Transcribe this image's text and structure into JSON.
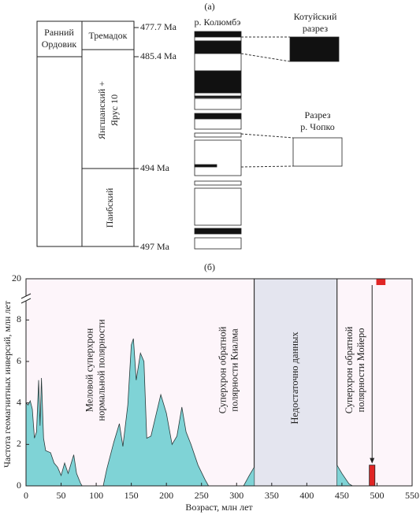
{
  "panel_a": {
    "label": "(а)",
    "era": [
      "Ранний",
      "Ордовик"
    ],
    "stage_top": "Тремадок",
    "stage_mid": [
      "Янгшанский +",
      "Ярус 10"
    ],
    "stage_low": "Паибский",
    "ages": [
      "477.7 Ма",
      "485.4 Ма",
      "494 Ма",
      "497 Ма"
    ],
    "section_main": "р. Колюмбэ",
    "section_kotuy": [
      "Котуйский",
      "разрез"
    ],
    "section_chopko": [
      "Разрез",
      "р. Чопко"
    ]
  },
  "chart_data": {
    "type": "area",
    "label": "(б)",
    "x_label": "Возраст, млн лет",
    "y_label": "Частота геомагнитных инверсий, млн лет",
    "x": [
      0,
      3,
      6,
      9,
      12,
      15,
      18,
      20,
      22,
      25,
      28,
      35,
      40,
      45,
      50,
      55,
      60,
      68,
      72,
      78,
      80,
      110,
      115,
      125,
      133,
      138,
      145,
      150,
      153,
      157,
      163,
      168,
      172,
      178,
      185,
      192,
      200,
      208,
      215,
      222,
      228,
      235,
      245,
      255,
      260,
      310,
      318,
      325,
      384,
      443,
      450,
      460,
      465
    ],
    "values": [
      4,
      3.9,
      4.1,
      3.7,
      2.3,
      2.6,
      5.1,
      2.9,
      5.2,
      2.3,
      1.7,
      1.6,
      1.1,
      0.9,
      0.5,
      1.1,
      0.6,
      1.5,
      0.6,
      0.1,
      0,
      0,
      0.8,
      2.1,
      3.0,
      1.9,
      3.9,
      6.8,
      7.1,
      5.1,
      6.4,
      6.0,
      2.3,
      2.4,
      3.4,
      4.4,
      3.5,
      2.0,
      2.4,
      3.8,
      2.6,
      2.0,
      1.0,
      0.3,
      0,
      0,
      0.5,
      0.9,
      null,
      1.0,
      0.6,
      0.1,
      0
    ],
    "color": "#7fd3d6",
    "xlim": [
      0,
      550
    ],
    "xticks": [
      0,
      50,
      100,
      150,
      200,
      250,
      300,
      350,
      400,
      450,
      500,
      550
    ],
    "ylim": [
      0,
      20
    ],
    "yticks": [
      0,
      2,
      4,
      6,
      8,
      20
    ],
    "axis_break": true,
    "no_data_region": {
      "x": [
        325,
        443
      ],
      "label": "Недостаточно данных",
      "color": "#e4e5ef"
    },
    "highlight_bar": {
      "x": [
        489,
        497
      ],
      "value": 1,
      "color": "#e02525"
    },
    "marker": {
      "x": [
        499,
        512
      ],
      "value": 20,
      "color": "#e02525"
    },
    "annotations": [
      {
        "x": 100,
        "lines": [
          "Меловой суперхрон",
          "нормальной полярности"
        ]
      },
      {
        "x": 290,
        "lines": [
          "Суперхрон обратной",
          "полярности Киалма"
        ]
      },
      {
        "x": 470,
        "lines": [
          "Суперхрон обратной",
          "полярности Мойеро"
        ]
      }
    ]
  }
}
